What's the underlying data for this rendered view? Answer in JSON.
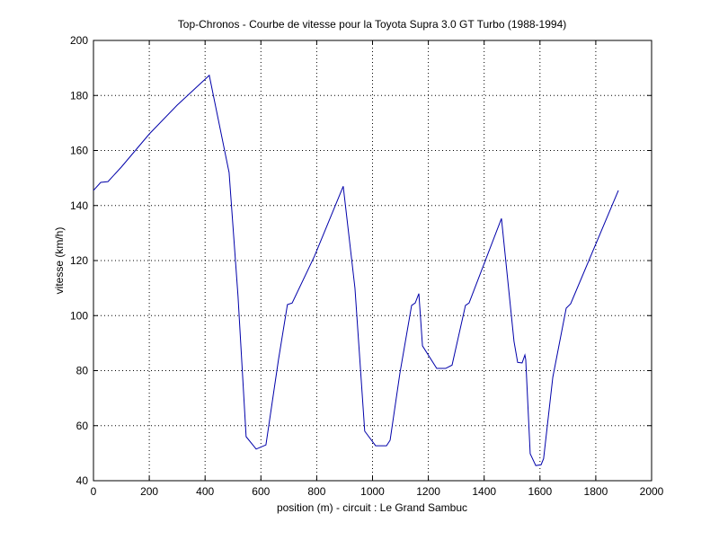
{
  "chart_data": {
    "type": "line",
    "title": "Top-Chronos - Courbe de vitesse pour la Toyota Supra 3.0 GT Turbo (1988-1994)",
    "xlabel": "position (m) - circuit : Le Grand Sambuc",
    "ylabel": "vitesse (km/h)",
    "x": [
      0,
      26,
      52,
      100,
      200,
      300,
      415,
      486,
      518,
      547,
      583,
      618,
      663,
      695,
      712,
      792,
      895,
      937,
      972,
      1011,
      1050,
      1063,
      1098,
      1140,
      1153,
      1166,
      1179,
      1230,
      1262,
      1285,
      1333,
      1346,
      1462,
      1507,
      1520,
      1536,
      1546,
      1549,
      1565,
      1585,
      1604,
      1613,
      1646,
      1694,
      1710,
      1881
    ],
    "series": [
      {
        "name": "vitesse",
        "color": "#0000aa",
        "values": [
          145.5,
          148.4,
          148.7,
          154,
          166,
          176.5,
          187.3,
          152,
          107,
          56,
          51.5,
          53,
          84,
          104,
          104.6,
          121.6,
          147,
          110,
          58,
          52.7,
          52.7,
          54.7,
          79,
          103.7,
          104.6,
          108,
          89,
          80.8,
          80.8,
          82,
          103.7,
          104.6,
          135.3,
          90.6,
          83,
          82.8,
          85.7,
          84,
          49.8,
          45.5,
          45.8,
          48,
          77.6,
          102.7,
          104.3,
          145.5
        ]
      }
    ],
    "xlim": [
      0,
      2000
    ],
    "xticks": [
      0,
      200,
      400,
      600,
      800,
      1000,
      1200,
      1400,
      1600,
      1800,
      2000
    ],
    "ylim": [
      40,
      200
    ],
    "yticks": [
      40,
      60,
      80,
      100,
      120,
      140,
      160,
      180,
      200
    ],
    "grid": true
  }
}
